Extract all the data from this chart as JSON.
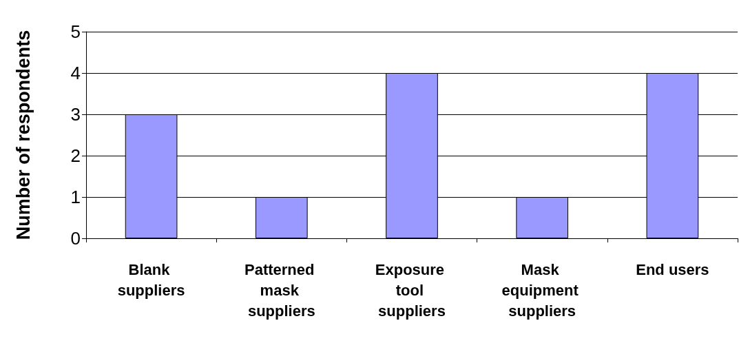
{
  "chart_data": {
    "type": "bar",
    "ylabel": "Number of respondents",
    "categories": [
      "Blank suppliers",
      "Patterned mask suppliers",
      "Exposure tool suppliers",
      "Mask equipment suppliers",
      "End users"
    ],
    "values": [
      3,
      1,
      4,
      1,
      4
    ],
    "color": "#9999ff",
    "ylim": [
      0,
      5
    ],
    "yticks": [
      0,
      1,
      2,
      3,
      4,
      5
    ],
    "grid": "y"
  }
}
